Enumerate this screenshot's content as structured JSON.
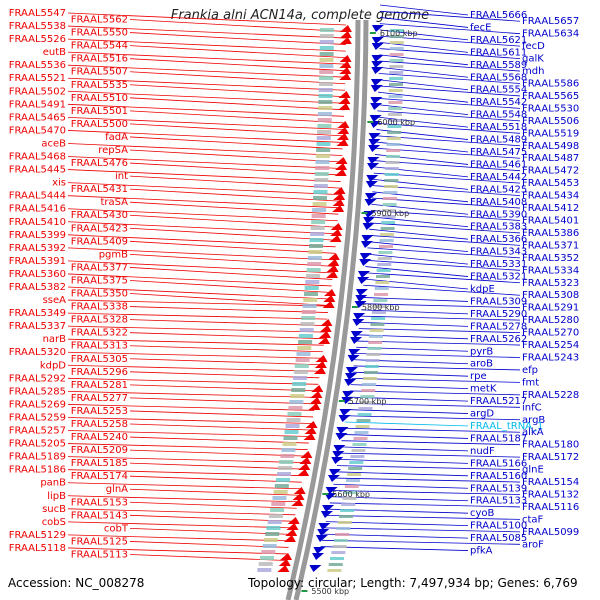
{
  "title": "Frankia alni ACN14a, complete genome",
  "accession": "Accession: NC_008278",
  "summary": "Topology: circular; Length: 7,497,934 bp; Genes: 6,769",
  "colors": {
    "left_strand": "#ee0000",
    "right_strand": "#0000cc",
    "trna": "#00bbee",
    "backbone": "#999999",
    "tick_mark": "#229944"
  },
  "scale_labels": [
    "6100 kbp",
    "6000 kbp",
    "5900 kbp",
    "5800 kbp",
    "5700 kbp",
    "5600 kbp",
    "5500 kbp"
  ],
  "left_labels": [
    "FRAAL5547",
    "FRAAL5562",
    "FRAAL5538",
    "FRAAL5550",
    "FRAAL5526",
    "FRAAL5544",
    "eutB",
    "FRAAL5516",
    "FRAAL5536",
    "FRAAL5507",
    "FRAAL5521",
    "FRAAL5535",
    "FRAAL5502",
    "FRAAL5510",
    "FRAAL5491",
    "FRAAL5501",
    "FRAAL5465",
    "FRAAL5500",
    "FRAAL5470",
    "fadA",
    "aceB",
    "repSA",
    "FRAAL5468",
    "FRAAL5476",
    "FRAAL5445",
    "int",
    "xis",
    "FRAAL5431",
    "FRAAL5444",
    "traSA",
    "FRAAL5416",
    "FRAAL5430",
    "FRAAL5410",
    "FRAAL5423",
    "FRAAL5399",
    "FRAAL5409",
    "FRAAL5392",
    "pgmB",
    "FRAAL5391",
    "FRAAL5377",
    "FRAAL5360",
    "FRAAL5375",
    "FRAAL5382",
    "FRAAL5350",
    "sseA",
    "FRAAL5338",
    "FRAAL5349",
    "FRAAL5328",
    "FRAAL5337",
    "FRAAL5322",
    "narB",
    "FRAAL5313",
    "FRAAL5320",
    "FRAAL5305",
    "kdpD",
    "FRAAL5296",
    "FRAAL5292",
    "FRAAL5281",
    "FRAAL5285",
    "FRAAL5277",
    "FRAAL5269",
    "FRAAL5253",
    "FRAAL5259",
    "FRAAL5258",
    "FRAAL5257",
    "FRAAL5240",
    "FRAAL5205",
    "FRAAL5209",
    "FRAAL5189",
    "FRAAL5185",
    "FRAAL5186",
    "FRAAL5174",
    "panB",
    "glnA",
    "lipB",
    "FRAAL5153",
    "sucB",
    "FRAAL5143",
    "cobS",
    "cobT",
    "FRAAL5129",
    "FRAAL5125",
    "FRAAL5118",
    "FRAAL5113"
  ],
  "right_labels": [
    "FRAAL5666",
    "FRAAL5657",
    "fecE",
    "FRAAL5634",
    "FRAAL5621",
    "fecD",
    "FRAAL5611",
    "galK",
    "FRAAL5589",
    "mdh",
    "FRAAL5568",
    "FRAAL5586",
    "FRAAL5554",
    "FRAAL5565",
    "FRAAL5542",
    "FRAAL5530",
    "FRAAL5548",
    "FRAAL5506",
    "FRAAL5518",
    "FRAAL5519",
    "FRAAL5489",
    "FRAAL5498",
    "FRAAL5475",
    "FRAAL5487",
    "FRAAL5461",
    "FRAAL5472",
    "FRAAL5442",
    "FRAAL5453",
    "FRAAL5425",
    "FRAAL5434",
    "FRAAL5408",
    "FRAAL5412",
    "FRAAL5390",
    "FRAAL5401",
    "FRAAL5383",
    "FRAAL5386",
    "FRAAL5366",
    "FRAAL5371",
    "FRAAL5343",
    "FRAAL5352",
    "FRAAL5331",
    "FRAAL5334",
    "FRAAL5321",
    "FRAAL5323",
    "kdpE",
    "FRAAL5308",
    "FRAAL5309",
    "FRAAL5291",
    "FRAAL5290",
    "FRAAL5280",
    "FRAAL5278",
    "FRAAL5270",
    "FRAAL5262",
    "FRAAL5254",
    "pyrB",
    "FRAAL5243",
    "aroB",
    "efp",
    "rpe",
    "fmt",
    "metK",
    "FRAAL5228",
    "FRAAL5217",
    "infC",
    "argD",
    "argB",
    "FRAAL_tRNA_1",
    "alkA",
    "FRAAL5187",
    "FRAAL5180",
    "nudF",
    "FRAAL5172",
    "FRAAL5166",
    "glnE",
    "FRAAL5160",
    "FRAAL5154",
    "FRAAL5139",
    "FRAAL5132",
    "FRAAL5133",
    "FRAAL5116",
    "cyoB",
    "ctaF",
    "FRAAL5100",
    "FRAAL5099",
    "FRAAL5085",
    "aroF",
    "pfkA"
  ]
}
